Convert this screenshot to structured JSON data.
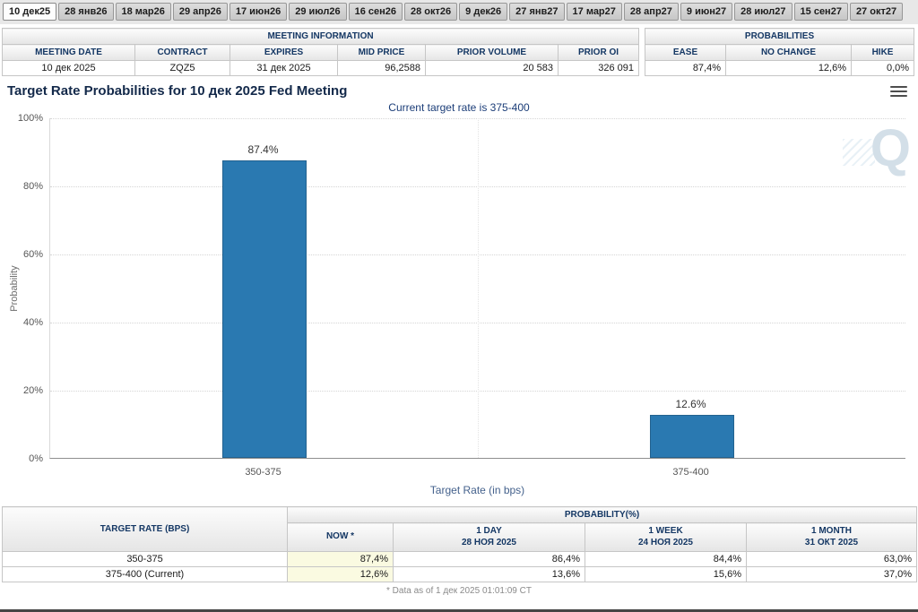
{
  "tabs": [
    {
      "label": "10 дек25",
      "selected": true
    },
    {
      "label": "28 янв26",
      "selected": false
    },
    {
      "label": "18 мар26",
      "selected": false
    },
    {
      "label": "29 апр26",
      "selected": false
    },
    {
      "label": "17 июн26",
      "selected": false
    },
    {
      "label": "29 июл26",
      "selected": false
    },
    {
      "label": "16 сен26",
      "selected": false
    },
    {
      "label": "28 окт26",
      "selected": false
    },
    {
      "label": "9 дек26",
      "selected": false
    },
    {
      "label": "27 янв27",
      "selected": false
    },
    {
      "label": "17 мар27",
      "selected": false
    },
    {
      "label": "28 апр27",
      "selected": false
    },
    {
      "label": "9 июн27",
      "selected": false
    },
    {
      "label": "28 июл27",
      "selected": false
    },
    {
      "label": "15 сен27",
      "selected": false
    },
    {
      "label": "27 окт27",
      "selected": false
    }
  ],
  "meeting_info": {
    "title": "MEETING INFORMATION",
    "columns": [
      "MEETING DATE",
      "CONTRACT",
      "EXPIRES",
      "MID PRICE",
      "PRIOR VOLUME",
      "PRIOR OI"
    ],
    "row": [
      "10 дек 2025",
      "ZQZ5",
      "31 дек 2025",
      "96,2588",
      "20 583",
      "326 091"
    ]
  },
  "probabilities_box": {
    "title": "PROBABILITIES",
    "columns": [
      "EASE",
      "NO CHANGE",
      "HIKE"
    ],
    "row": [
      "87,4%",
      "12,6%",
      "0,0%"
    ]
  },
  "chart_data": {
    "type": "bar",
    "title": "Target Rate Probabilities for 10 дек 2025 Fed Meeting",
    "subtitle": "Current target rate is 375-400",
    "categories": [
      "350-375",
      "375-400"
    ],
    "values": [
      87.4,
      12.6
    ],
    "value_labels": [
      "87.4%",
      "12.6%"
    ],
    "xlabel": "Target Rate (in bps)",
    "ylabel": "Probability",
    "ylim": [
      0,
      100
    ],
    "y_ticks": [
      "0%",
      "20%",
      "40%",
      "60%",
      "80%",
      "100%"
    ],
    "grid": "dotted-horizontal",
    "legend": "none",
    "bar_color": "#2a79b1"
  },
  "watermark": {
    "letter": "Q"
  },
  "history_table": {
    "col1_header": "TARGET RATE (BPS)",
    "group_header": "PROBABILITY(%)",
    "sub_headers": [
      {
        "line1": "NOW *",
        "line2": ""
      },
      {
        "line1": "1 DAY",
        "line2": "28 НОЯ 2025"
      },
      {
        "line1": "1 WEEK",
        "line2": "24 НОЯ 2025"
      },
      {
        "line1": "1 MONTH",
        "line2": "31 ОКТ 2025"
      }
    ],
    "rows": [
      {
        "label": "350-375",
        "values": [
          "87,4%",
          "86,4%",
          "84,4%",
          "63,0%"
        ]
      },
      {
        "label": "375-400 (Current)",
        "values": [
          "12,6%",
          "13,6%",
          "15,6%",
          "37,0%"
        ]
      }
    ],
    "footnote": "* Data as of 1 дек 2025 01:01:09 CT"
  }
}
